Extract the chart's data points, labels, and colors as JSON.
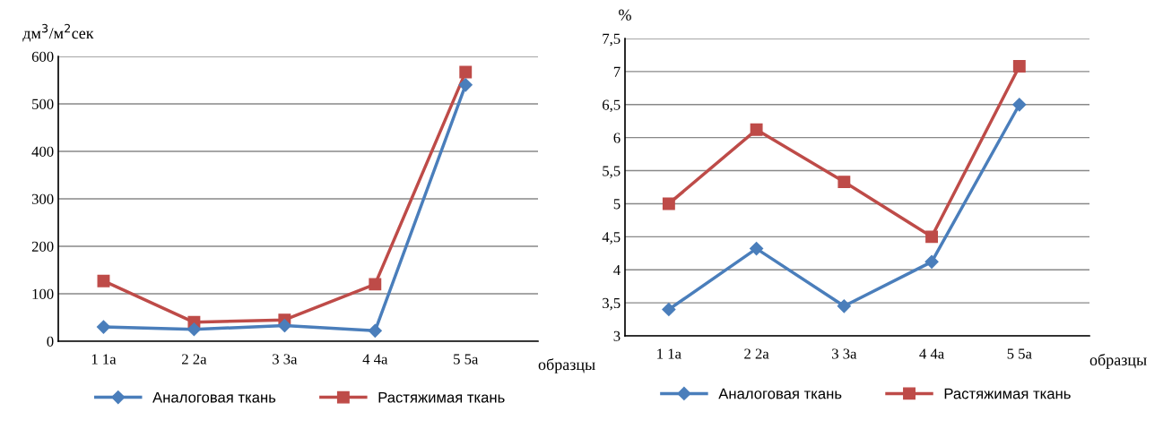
{
  "chart_data": [
    {
      "type": "line",
      "ylabel": "дм$^{3}$/м$^{2}$сек",
      "xlabel": "образцы",
      "categories": [
        "1 1а",
        "2 2а",
        "3 3а",
        "4 4а",
        "5 5а"
      ],
      "series": [
        {
          "name": "Аналоговая ткань",
          "color": "#4a7ebb",
          "marker": "diamond",
          "values": [
            30,
            25,
            33,
            22,
            540
          ]
        },
        {
          "name": "Растяжимая ткань",
          "color": "#be4b48",
          "marker": "square",
          "values": [
            127,
            40,
            45,
            120,
            567
          ]
        }
      ],
      "ylim": [
        0,
        600
      ],
      "yticks": [
        0,
        100,
        200,
        300,
        400,
        500,
        600
      ],
      "grid": "y",
      "legend": "bottom left"
    },
    {
      "type": "line",
      "ylabel": "%",
      "xlabel": "образцы",
      "categories": [
        "1 1а",
        "2 2а",
        "3 3а",
        "4 4а",
        "5 5а"
      ],
      "series": [
        {
          "name": "Аналоговая ткань",
          "color": "#4a7ebb",
          "marker": "diamond",
          "values": [
            3.4,
            4.32,
            3.45,
            4.12,
            6.5
          ]
        },
        {
          "name": "Растяжимая ткань",
          "color": "#be4b48",
          "marker": "square",
          "values": [
            5.0,
            6.12,
            5.33,
            4.5,
            7.08
          ]
        }
      ],
      "ylim": [
        3,
        7.5
      ],
      "yticks": [
        3,
        {
          "value": 3.5,
          "label": "3,5"
        },
        4,
        {
          "value": 4.5,
          "label": "4,5"
        },
        5,
        {
          "value": 5.5,
          "label": "5,5"
        },
        6,
        {
          "value": 6.5,
          "label": "6,5"
        },
        7,
        {
          "value": 7.5,
          "label": "7,5"
        }
      ],
      "grid": "y",
      "legend": "bottom left"
    }
  ]
}
